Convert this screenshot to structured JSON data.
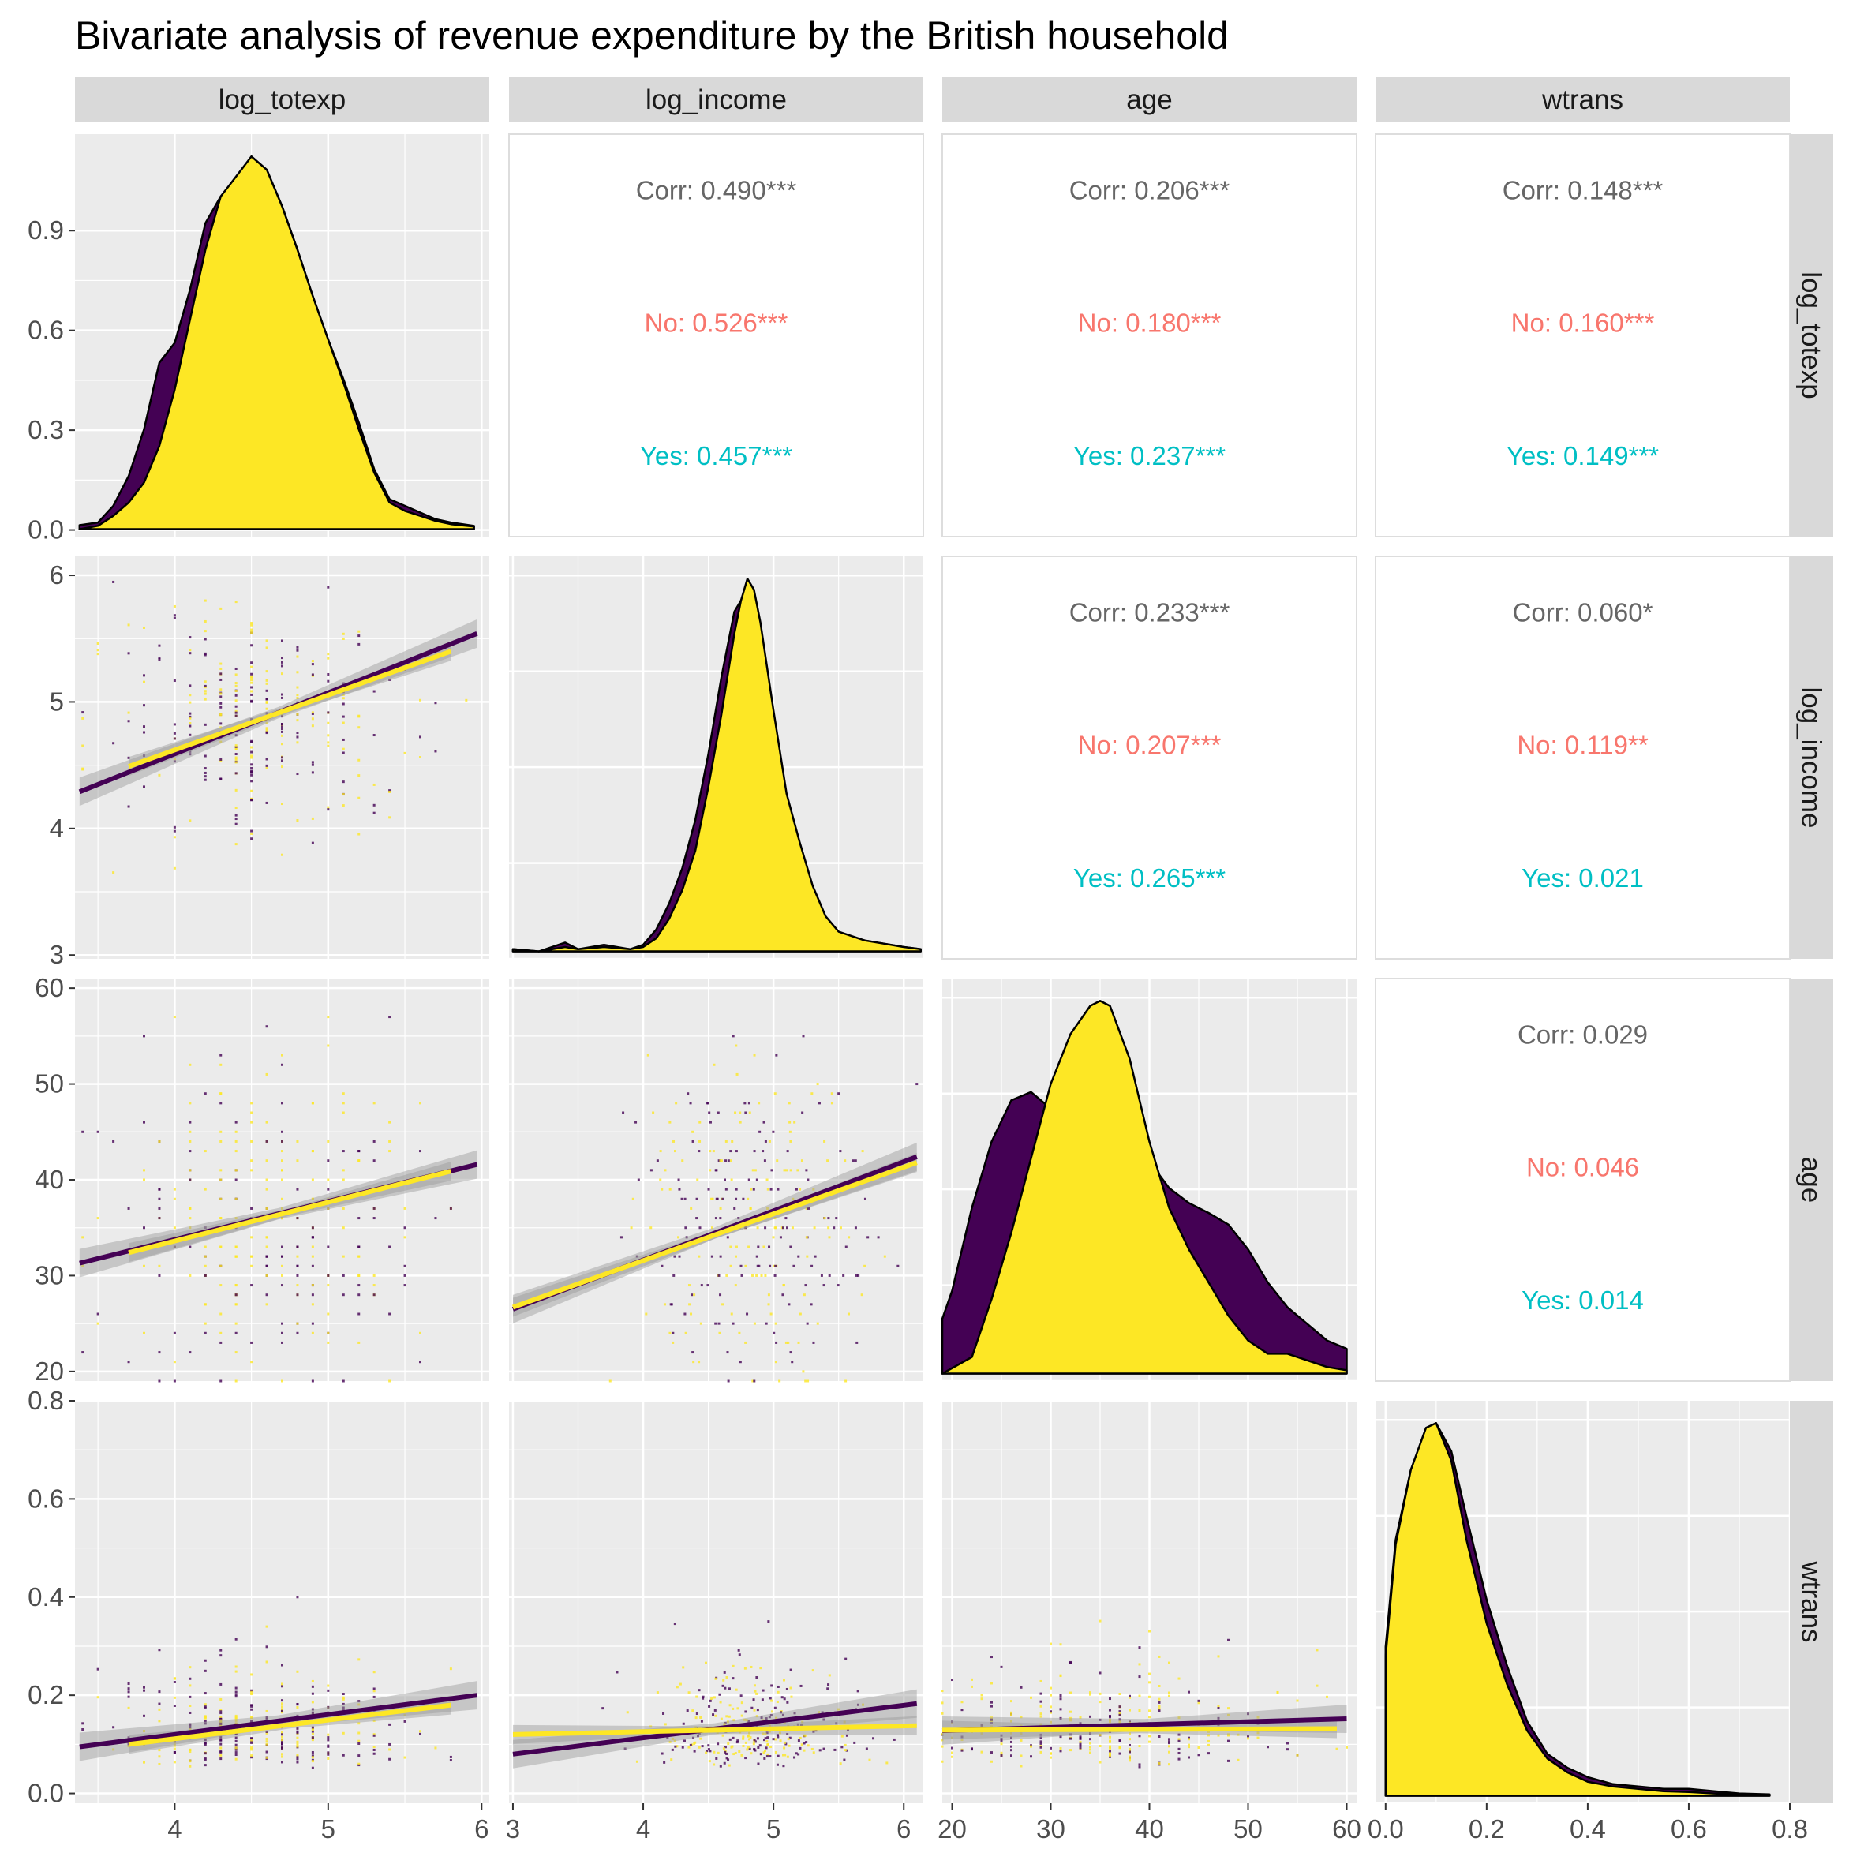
{
  "title": "Bivariate analysis of revenue expenditure by the British household",
  "variables": [
    "log_totexp",
    "log_income",
    "age",
    "wtrans"
  ],
  "colors": {
    "panel_bg": "#EBEBEB",
    "grid": "#FFFFFF",
    "strip_bg": "#D9D9D9",
    "no_group": "#440154",
    "yes_group": "#FDE725",
    "corr_total": "#666666",
    "corr_no": "#F8766D",
    "corr_yes": "#00BFC4",
    "ribbon": "#999999"
  },
  "chart_data": {
    "type": "scatter",
    "layout": "pairs-matrix",
    "groups": [
      "No",
      "Yes"
    ],
    "axes": {
      "log_totexp": {
        "range": [
          3.35,
          6.05
        ],
        "ticks": [
          4,
          5,
          6
        ],
        "labels": [
          "4",
          "5",
          "6"
        ]
      },
      "log_income": {
        "range": [
          2.97,
          6.15
        ],
        "ticks": [
          3,
          4,
          5,
          6
        ],
        "labels": [
          "3",
          "4",
          "5",
          "6"
        ]
      },
      "age": {
        "range": [
          19,
          61
        ],
        "ticks": [
          20,
          30,
          40,
          50,
          60
        ],
        "labels": [
          "20",
          "30",
          "40",
          "50",
          "60"
        ]
      },
      "wtrans": {
        "range": [
          -0.02,
          0.8
        ],
        "ticks": [
          0,
          0.2,
          0.4,
          0.6,
          0.8
        ],
        "labels": [
          "0.0",
          "0.2",
          "0.4",
          "0.6",
          "0.8"
        ]
      }
    },
    "density_axis": {
      "range": [
        -0.02,
        1.19
      ],
      "ticks": [
        0,
        0.3,
        0.6,
        0.9
      ],
      "labels": [
        "0.0",
        "0.3",
        "0.6",
        "0.9"
      ]
    },
    "correlations": [
      {
        "row": 0,
        "col": 1,
        "total": "Corr: 0.490***",
        "no": "No: 0.526***",
        "yes": "Yes: 0.457***"
      },
      {
        "row": 0,
        "col": 2,
        "total": "Corr: 0.206***",
        "no": "No: 0.180***",
        "yes": "Yes: 0.237***"
      },
      {
        "row": 0,
        "col": 3,
        "total": "Corr: 0.148***",
        "no": "No: 0.160***",
        "yes": "Yes: 0.149***"
      },
      {
        "row": 1,
        "col": 2,
        "total": "Corr: 0.233***",
        "no": "No: 0.207***",
        "yes": "Yes: 0.265***"
      },
      {
        "row": 1,
        "col": 3,
        "total": "Corr: 0.060*",
        "no": "No: 0.119**",
        "yes": "Yes: 0.021"
      },
      {
        "row": 2,
        "col": 3,
        "total": "Corr: 0.029",
        "no": "No: 0.046",
        "yes": "Yes: 0.014"
      }
    ],
    "regression_lines": [
      {
        "x": "log_totexp",
        "y": "log_income",
        "no": [
          [
            3.38,
            4.29
          ],
          [
            5.97,
            5.54
          ]
        ],
        "yes": [
          [
            3.7,
            4.49
          ],
          [
            5.8,
            5.4
          ]
        ]
      },
      {
        "x": "log_totexp",
        "y": "age",
        "no": [
          [
            3.38,
            31.3
          ],
          [
            5.97,
            41.6
          ]
        ],
        "yes": [
          [
            3.7,
            32.4
          ],
          [
            5.8,
            40.9
          ]
        ]
      },
      {
        "x": "log_income",
        "y": "age",
        "no": [
          [
            3.0,
            26.5
          ],
          [
            6.1,
            42.4
          ]
        ],
        "yes": [
          [
            3.0,
            26.7
          ],
          [
            6.1,
            41.8
          ]
        ]
      },
      {
        "x": "log_totexp",
        "y": "wtrans",
        "no": [
          [
            3.38,
            0.095
          ],
          [
            5.97,
            0.2
          ]
        ],
        "yes": [
          [
            3.7,
            0.1
          ],
          [
            5.8,
            0.18
          ]
        ]
      },
      {
        "x": "log_income",
        "y": "wtrans",
        "no": [
          [
            3.0,
            0.08
          ],
          [
            6.1,
            0.183
          ]
        ],
        "yes": [
          [
            3.0,
            0.12
          ],
          [
            6.1,
            0.138
          ]
        ]
      },
      {
        "x": "age",
        "y": "wtrans",
        "no": [
          [
            19,
            0.128
          ],
          [
            60,
            0.152
          ]
        ],
        "yes": [
          [
            19,
            0.129
          ],
          [
            59,
            0.132
          ]
        ]
      }
    ],
    "densities": {
      "log_totexp": {
        "no": [
          [
            3.38,
            0.012
          ],
          [
            3.5,
            0.02
          ],
          [
            3.6,
            0.07
          ],
          [
            3.7,
            0.16
          ],
          [
            3.8,
            0.3
          ],
          [
            3.9,
            0.5
          ],
          [
            4.0,
            0.56
          ],
          [
            4.1,
            0.72
          ],
          [
            4.2,
            0.92
          ],
          [
            4.3,
            1.0
          ],
          [
            4.4,
            1.05
          ],
          [
            4.5,
            1.12
          ],
          [
            4.6,
            1.08
          ],
          [
            4.7,
            0.97
          ],
          [
            4.8,
            0.84
          ],
          [
            4.9,
            0.7
          ],
          [
            5.0,
            0.57
          ],
          [
            5.1,
            0.45
          ],
          [
            5.2,
            0.32
          ],
          [
            5.3,
            0.18
          ],
          [
            5.4,
            0.09
          ],
          [
            5.5,
            0.07
          ],
          [
            5.6,
            0.05
          ],
          [
            5.7,
            0.03
          ],
          [
            5.8,
            0.02
          ],
          [
            5.95,
            0.01
          ]
        ],
        "yes": [
          [
            3.38,
            0.0
          ],
          [
            3.5,
            0.01
          ],
          [
            3.6,
            0.04
          ],
          [
            3.7,
            0.08
          ],
          [
            3.8,
            0.14
          ],
          [
            3.9,
            0.25
          ],
          [
            4.0,
            0.42
          ],
          [
            4.1,
            0.63
          ],
          [
            4.2,
            0.84
          ],
          [
            4.3,
            1.0
          ],
          [
            4.4,
            1.06
          ],
          [
            4.5,
            1.12
          ],
          [
            4.6,
            1.08
          ],
          [
            4.7,
            0.97
          ],
          [
            4.8,
            0.84
          ],
          [
            4.9,
            0.7
          ],
          [
            5.0,
            0.57
          ],
          [
            5.1,
            0.44
          ],
          [
            5.2,
            0.3
          ],
          [
            5.3,
            0.17
          ],
          [
            5.4,
            0.08
          ],
          [
            5.5,
            0.055
          ],
          [
            5.6,
            0.04
          ],
          [
            5.7,
            0.025
          ],
          [
            5.8,
            0.015
          ],
          [
            5.95,
            0.008
          ]
        ]
      },
      "log_income": {
        "no": [
          [
            3.0,
            0.01
          ],
          [
            3.2,
            0.0
          ],
          [
            3.4,
            0.04
          ],
          [
            3.5,
            0.01
          ],
          [
            3.7,
            0.03
          ],
          [
            3.9,
            0.01
          ],
          [
            4.0,
            0.03
          ],
          [
            4.1,
            0.1
          ],
          [
            4.2,
            0.22
          ],
          [
            4.3,
            0.38
          ],
          [
            4.4,
            0.6
          ],
          [
            4.5,
            0.9
          ],
          [
            4.6,
            1.25
          ],
          [
            4.7,
            1.55
          ],
          [
            4.75,
            1.6
          ],
          [
            4.8,
            1.62
          ],
          [
            4.85,
            1.6
          ],
          [
            4.9,
            1.42
          ],
          [
            5.0,
            0.98
          ],
          [
            5.1,
            0.62
          ],
          [
            5.2,
            0.44
          ],
          [
            5.3,
            0.26
          ],
          [
            5.4,
            0.14
          ],
          [
            5.5,
            0.08
          ],
          [
            5.7,
            0.05
          ],
          [
            5.9,
            0.03
          ],
          [
            6.0,
            0.02
          ],
          [
            6.13,
            0.01
          ]
        ],
        "yes": [
          [
            3.0,
            0.01
          ],
          [
            3.2,
            0.0
          ],
          [
            3.4,
            0.02
          ],
          [
            3.5,
            0.01
          ],
          [
            3.7,
            0.02
          ],
          [
            3.9,
            0.01
          ],
          [
            4.0,
            0.02
          ],
          [
            4.1,
            0.06
          ],
          [
            4.2,
            0.15
          ],
          [
            4.3,
            0.28
          ],
          [
            4.4,
            0.46
          ],
          [
            4.5,
            0.75
          ],
          [
            4.6,
            1.08
          ],
          [
            4.7,
            1.45
          ],
          [
            4.75,
            1.6
          ],
          [
            4.8,
            1.7
          ],
          [
            4.85,
            1.65
          ],
          [
            4.9,
            1.5
          ],
          [
            5.0,
            1.1
          ],
          [
            5.1,
            0.72
          ],
          [
            5.2,
            0.5
          ],
          [
            5.3,
            0.3
          ],
          [
            5.4,
            0.16
          ],
          [
            5.5,
            0.09
          ],
          [
            5.7,
            0.05
          ],
          [
            5.9,
            0.03
          ],
          [
            6.0,
            0.02
          ],
          [
            6.13,
            0.01
          ]
        ]
      },
      "age": {
        "no": [
          [
            19,
            0.033
          ],
          [
            20,
            0.05
          ],
          [
            22,
            0.1
          ],
          [
            24,
            0.14
          ],
          [
            26,
            0.165
          ],
          [
            28,
            0.17
          ],
          [
            30,
            0.16
          ],
          [
            32,
            0.152
          ],
          [
            34,
            0.158
          ],
          [
            36,
            0.16
          ],
          [
            38,
            0.148
          ],
          [
            40,
            0.128
          ],
          [
            42,
            0.112
          ],
          [
            44,
            0.103
          ],
          [
            46,
            0.097
          ],
          [
            48,
            0.09
          ],
          [
            50,
            0.075
          ],
          [
            52,
            0.055
          ],
          [
            54,
            0.04
          ],
          [
            56,
            0.03
          ],
          [
            58,
            0.02
          ],
          [
            60,
            0.015
          ]
        ],
        "yes": [
          [
            19,
            0.0
          ],
          [
            22,
            0.01
          ],
          [
            24,
            0.045
          ],
          [
            26,
            0.085
          ],
          [
            28,
            0.13
          ],
          [
            30,
            0.175
          ],
          [
            32,
            0.205
          ],
          [
            34,
            0.222
          ],
          [
            35,
            0.225
          ],
          [
            36,
            0.222
          ],
          [
            38,
            0.19
          ],
          [
            40,
            0.14
          ],
          [
            42,
            0.1
          ],
          [
            44,
            0.075
          ],
          [
            46,
            0.055
          ],
          [
            48,
            0.035
          ],
          [
            50,
            0.02
          ],
          [
            52,
            0.012
          ],
          [
            54,
            0.012
          ],
          [
            56,
            0.008
          ],
          [
            58,
            0.004
          ],
          [
            60,
            0.002
          ]
        ]
      },
      "wtrans": {
        "no": [
          [
            0.0,
            0.32
          ],
          [
            0.02,
            0.55
          ],
          [
            0.05,
            0.7
          ],
          [
            0.08,
            0.78
          ],
          [
            0.1,
            0.8
          ],
          [
            0.13,
            0.74
          ],
          [
            0.16,
            0.6
          ],
          [
            0.2,
            0.42
          ],
          [
            0.24,
            0.28
          ],
          [
            0.28,
            0.16
          ],
          [
            0.32,
            0.09
          ],
          [
            0.36,
            0.06
          ],
          [
            0.4,
            0.04
          ],
          [
            0.45,
            0.025
          ],
          [
            0.5,
            0.02
          ],
          [
            0.55,
            0.015
          ],
          [
            0.6,
            0.015
          ],
          [
            0.65,
            0.01
          ],
          [
            0.7,
            0.005
          ],
          [
            0.76,
            0.003
          ]
        ],
        "yes": [
          [
            0.0,
            0.3
          ],
          [
            0.02,
            0.54
          ],
          [
            0.05,
            0.7
          ],
          [
            0.08,
            0.79
          ],
          [
            0.1,
            0.8
          ],
          [
            0.13,
            0.72
          ],
          [
            0.16,
            0.55
          ],
          [
            0.2,
            0.37
          ],
          [
            0.24,
            0.24
          ],
          [
            0.28,
            0.14
          ],
          [
            0.32,
            0.08
          ],
          [
            0.36,
            0.05
          ],
          [
            0.4,
            0.03
          ],
          [
            0.45,
            0.02
          ],
          [
            0.5,
            0.015
          ],
          [
            0.55,
            0.01
          ],
          [
            0.6,
            0.008
          ],
          [
            0.65,
            0.005
          ],
          [
            0.7,
            0.003
          ],
          [
            0.76,
            0.002
          ]
        ]
      }
    }
  }
}
